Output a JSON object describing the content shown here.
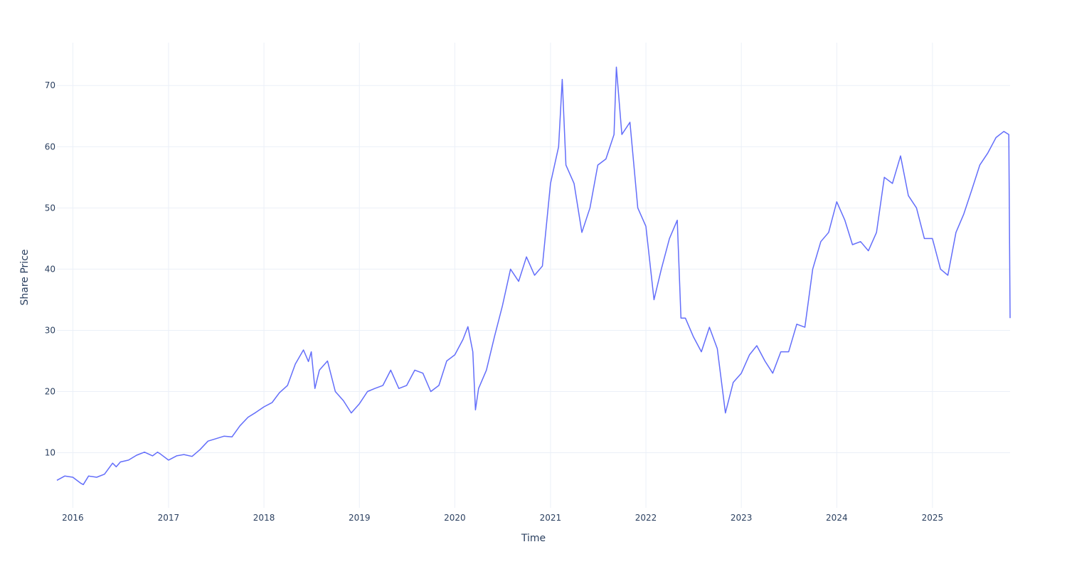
{
  "chart_data": {
    "type": "line",
    "title": "",
    "xlabel": "Time",
    "ylabel": "Share Price",
    "x_ticks": [
      "2016",
      "2017",
      "2018",
      "2019",
      "2020",
      "2021",
      "2022",
      "2023",
      "2024",
      "2025"
    ],
    "y_ticks": [
      10,
      20,
      30,
      40,
      50,
      60,
      70
    ],
    "xlim": [
      "2015-11-01",
      "2025-10-25"
    ],
    "ylim": [
      1,
      77
    ],
    "grid": true,
    "line_color": "#636efa",
    "series": [
      {
        "x": [
          "2015-11-01",
          "2015-12-01",
          "2016-01-01",
          "2016-02-01",
          "2016-02-10",
          "2016-03-01",
          "2016-04-01",
          "2016-05-01",
          "2016-06-01",
          "2016-06-15",
          "2016-07-01",
          "2016-08-01",
          "2016-09-01",
          "2016-10-01",
          "2016-11-01",
          "2016-11-20",
          "2016-12-01",
          "2017-01-01",
          "2017-02-01",
          "2017-03-01",
          "2017-04-01",
          "2017-05-01",
          "2017-06-01",
          "2017-07-01",
          "2017-08-01",
          "2017-09-01",
          "2017-10-01",
          "2017-11-01",
          "2017-12-01",
          "2018-01-01",
          "2018-02-01",
          "2018-03-01",
          "2018-04-01",
          "2018-05-01",
          "2018-06-01",
          "2018-06-20",
          "2018-07-01",
          "2018-07-15",
          "2018-08-01",
          "2018-09-01",
          "2018-10-01",
          "2018-11-01",
          "2018-12-01",
          "2019-01-01",
          "2019-02-01",
          "2019-03-01",
          "2019-04-01",
          "2019-05-01",
          "2019-06-01",
          "2019-07-01",
          "2019-08-01",
          "2019-09-01",
          "2019-10-01",
          "2019-11-01",
          "2019-12-01",
          "2020-01-01",
          "2020-02-01",
          "2020-02-20",
          "2020-03-10",
          "2020-03-20",
          "2020-04-01",
          "2020-05-01",
          "2020-06-01",
          "2020-07-01",
          "2020-08-01",
          "2020-09-01",
          "2020-10-01",
          "2020-11-01",
          "2020-12-01",
          "2021-01-01",
          "2021-02-01",
          "2021-02-15",
          "2021-03-01",
          "2021-04-01",
          "2021-05-01",
          "2021-06-01",
          "2021-07-01",
          "2021-08-01",
          "2021-09-01",
          "2021-09-10",
          "2021-10-01",
          "2021-11-01",
          "2021-12-01",
          "2022-01-01",
          "2022-02-01",
          "2022-03-01",
          "2022-04-01",
          "2022-05-01",
          "2022-05-15",
          "2022-06-01",
          "2022-07-01",
          "2022-08-01",
          "2022-09-01",
          "2022-10-01",
          "2022-11-01",
          "2022-12-01",
          "2023-01-01",
          "2023-02-01",
          "2023-03-01",
          "2023-04-01",
          "2023-05-01",
          "2023-06-01",
          "2023-07-01",
          "2023-08-01",
          "2023-09-01",
          "2023-10-01",
          "2023-11-01",
          "2023-12-01",
          "2024-01-01",
          "2024-02-01",
          "2024-03-01",
          "2024-04-01",
          "2024-05-01",
          "2024-06-01",
          "2024-07-01",
          "2024-08-01",
          "2024-09-01",
          "2024-10-01",
          "2024-11-01",
          "2024-12-01",
          "2025-01-01",
          "2025-02-01",
          "2025-03-01",
          "2025-04-01",
          "2025-05-01",
          "2025-06-01",
          "2025-07-01",
          "2025-08-01",
          "2025-09-01",
          "2025-10-01",
          "2025-10-20",
          "2025-10-25"
        ],
        "y": [
          5.5,
          6.2,
          6.0,
          5.0,
          4.8,
          6.2,
          6.0,
          6.5,
          8.3,
          7.7,
          8.5,
          8.8,
          9.6,
          10.1,
          9.5,
          10.1,
          9.8,
          8.8,
          9.5,
          9.7,
          9.4,
          10.5,
          11.9,
          12.3,
          12.7,
          12.6,
          14.4,
          15.8,
          16.6,
          17.5,
          18.2,
          19.8,
          21.0,
          24.5,
          26.8,
          24.9,
          26.5,
          20.5,
          23.5,
          25.0,
          20.0,
          18.5,
          16.5,
          18.0,
          20.0,
          20.5,
          21.0,
          23.5,
          20.5,
          21.0,
          23.5,
          23.0,
          20.0,
          21.0,
          25.0,
          26.0,
          28.5,
          30.6,
          26.5,
          17.0,
          20.5,
          23.5,
          29.0,
          34.0,
          40.0,
          38.0,
          42.0,
          39.0,
          40.5,
          54.0,
          60.0,
          71.0,
          57.0,
          54.0,
          46.0,
          50.0,
          57.0,
          58.0,
          62.0,
          73.0,
          62.0,
          64.0,
          50.0,
          47.0,
          35.0,
          40.0,
          45.0,
          48.0,
          32.0,
          32.0,
          29.0,
          26.5,
          30.5,
          27.0,
          16.5,
          21.5,
          23.0,
          26.0,
          27.5,
          25.0,
          23.0,
          26.5,
          26.5,
          31.0,
          30.5,
          40.0,
          44.5,
          46.0,
          51.0,
          48.0,
          44.0,
          44.5,
          43.0,
          46.0,
          55.0,
          54.0,
          58.5,
          52.0,
          50.0,
          45.0,
          45.0,
          40.0,
          39.0,
          46.0,
          49.0,
          53.0,
          57.0,
          59.0,
          61.5,
          62.5,
          62.0,
          32.0
        ]
      }
    ]
  }
}
